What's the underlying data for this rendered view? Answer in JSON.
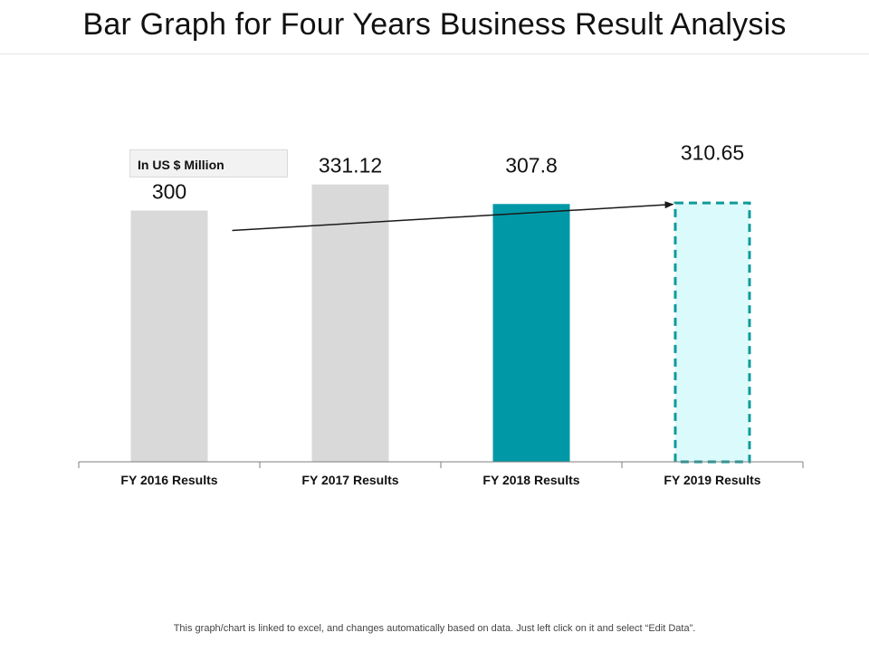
{
  "title": "Bar Graph for Four Years Business Result Analysis",
  "unit_label": "In US $ Million",
  "footer_note": "This graph/chart is linked to excel, and changes automatically based on data. Just left click on it and select “Edit Data”.",
  "colors": {
    "past_bar": "#d9d9d9",
    "current_bar": "#0098a6",
    "projected_fill": "#dbfafc",
    "projected_border": "#0f9a9a",
    "trend_arrow": "#1a1a1a",
    "axis": "#7f7f7f"
  },
  "chart_data": {
    "type": "bar",
    "categories": [
      "FY 2016 Results",
      "FY 2017 Results",
      "FY 2018 Results",
      "FY 2019 Results"
    ],
    "values": [
      300,
      331.12,
      307.8,
      310.65
    ],
    "value_labels": [
      "300",
      "331.12",
      "307.8",
      "310.65"
    ],
    "bar_styles": [
      "past",
      "past",
      "current",
      "projected"
    ],
    "ylim": [
      0,
      400
    ],
    "grid": false,
    "legend": "none",
    "annotations": [
      "trend-arrow"
    ]
  }
}
